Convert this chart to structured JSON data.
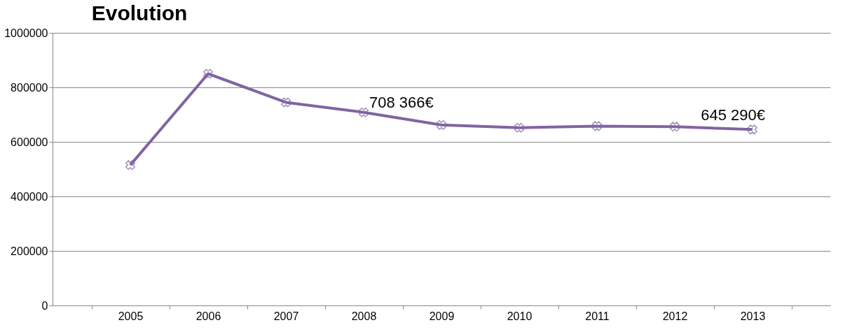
{
  "chart_data": {
    "type": "line",
    "title": "Evolution",
    "categories": [
      "2005",
      "2006",
      "2007",
      "2008",
      "2009",
      "2010",
      "2011",
      "2012",
      "2013"
    ],
    "series": [
      {
        "color": "#8064a2",
        "values": [
          515000,
          850000,
          745000,
          708366,
          662000,
          652000,
          658000,
          656000,
          645290
        ],
        "value_labels": [
          null,
          null,
          null,
          "708 366€",
          null,
          null,
          null,
          null,
          "645 290€"
        ]
      }
    ],
    "ylim": [
      0,
      1000000
    ],
    "yticks": [
      0,
      200000,
      400000,
      600000,
      800000,
      1000000
    ],
    "grid": "y",
    "marker": "cross",
    "line_style": "solid"
  }
}
